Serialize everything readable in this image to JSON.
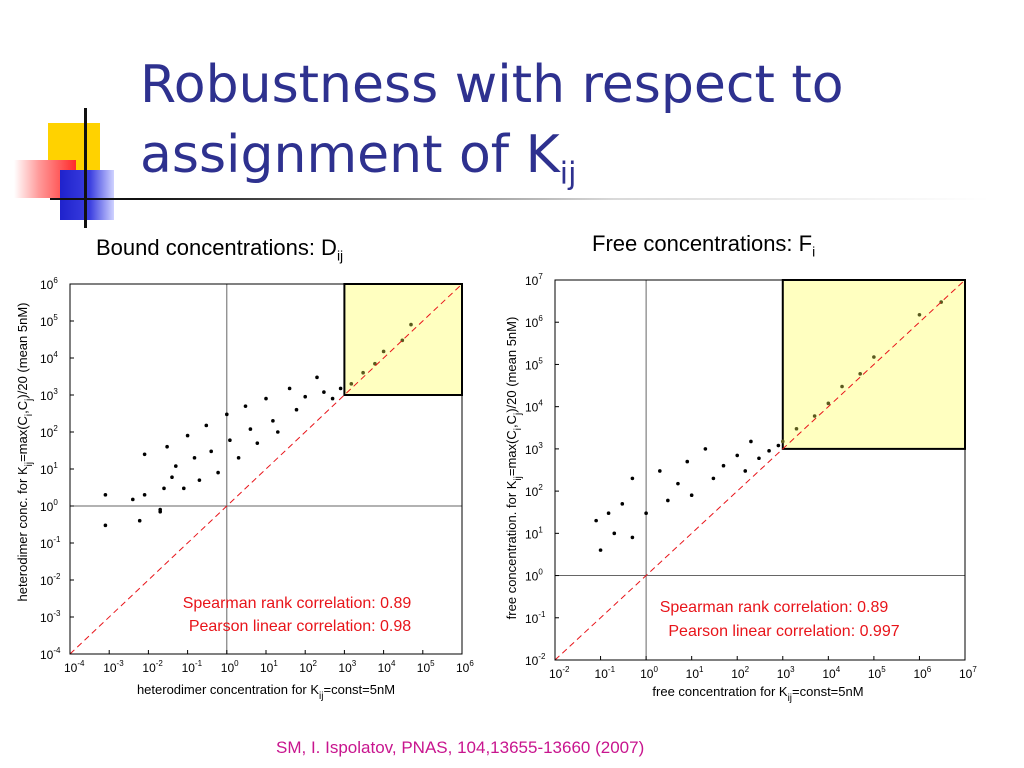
{
  "slide": {
    "title_main": "Robustness with respect to assignment of K",
    "title_sub": "ij",
    "citation": "SM, I. Ispolatov, PNAS, 104,13655-13660  (2007)",
    "colors": {
      "title": "#2e318f",
      "citation": "#c8158e",
      "annotation": "#e8141a",
      "highlight": "#ffffc0"
    }
  },
  "chart_data": [
    {
      "type": "scatter",
      "title": "Bound concentrations: D",
      "title_sub": "ij",
      "xlabel": "heterodimer concentration for K",
      "xlabel_sub": "ij",
      "xlabel_tail": "=const=5nM",
      "ylabel": "heterodimer conc. for K",
      "ylabel_sub": "ij",
      "ylabel_tail": "=max(C",
      "ylabel_sub2": "i",
      "ylabel_mid": ",C",
      "ylabel_sub3": "j",
      "ylabel_end": ")/20 (mean 5nM)",
      "xscale": "log",
      "yscale": "log",
      "xlim": [
        0.0001,
        1000000
      ],
      "ylim": [
        0.0001,
        1000000
      ],
      "xtick_exponents": [
        "-4",
        "-3",
        "-2",
        "-1",
        "0",
        "1",
        "2",
        "3",
        "4",
        "5",
        "6"
      ],
      "ytick_exponents": [
        "-4",
        "-3",
        "-2",
        "-1",
        "0",
        "1",
        "2",
        "3",
        "4",
        "5",
        "6"
      ],
      "reference_lines": {
        "vertical_x": 1,
        "horizontal_y": 1,
        "diagonal": "y = x"
      },
      "highlight_box": {
        "x": [
          1000,
          1000000
        ],
        "y": [
          1000,
          1000000
        ]
      },
      "points": [
        [
          0.0008,
          0.3
        ],
        [
          0.0008,
          2
        ],
        [
          0.004,
          1.5
        ],
        [
          0.006,
          0.4
        ],
        [
          0.008,
          25
        ],
        [
          0.008,
          2
        ],
        [
          0.02,
          0.7
        ],
        [
          0.02,
          0.8
        ],
        [
          0.025,
          3
        ],
        [
          0.03,
          40
        ],
        [
          0.04,
          6
        ],
        [
          0.05,
          12
        ],
        [
          0.08,
          3
        ],
        [
          0.1,
          80
        ],
        [
          0.15,
          20
        ],
        [
          0.2,
          5
        ],
        [
          0.3,
          150
        ],
        [
          0.4,
          30
        ],
        [
          0.6,
          8
        ],
        [
          1,
          300
        ],
        [
          1.2,
          60
        ],
        [
          2,
          20
        ],
        [
          3,
          500
        ],
        [
          4,
          120
        ],
        [
          6,
          50
        ],
        [
          10,
          800
        ],
        [
          15,
          200
        ],
        [
          20,
          100
        ],
        [
          40,
          1500
        ],
        [
          60,
          400
        ],
        [
          100,
          900
        ],
        [
          200,
          3000
        ],
        [
          300,
          1200
        ],
        [
          500,
          800
        ],
        [
          800,
          1500
        ],
        [
          1500,
          2000
        ],
        [
          3000,
          4000
        ],
        [
          6000,
          7000
        ],
        [
          10000,
          15000
        ],
        [
          30000,
          30000
        ],
        [
          50000,
          80000
        ]
      ],
      "annotations": [
        "Spearman rank correlation: 0.89",
        "Pearson linear correlation: 0.98"
      ]
    },
    {
      "type": "scatter",
      "title": "Free concentrations: F",
      "title_sub": "i",
      "xlabel": "free concentration for K",
      "xlabel_sub": "ij",
      "xlabel_tail": "=const=5nM",
      "ylabel": "free concentration. for K",
      "ylabel_sub": "ij",
      "ylabel_tail": "=max(C",
      "ylabel_sub2": "i",
      "ylabel_mid": ",C",
      "ylabel_sub3": "j",
      "ylabel_end": ")/20 (mean 5nM)",
      "xscale": "log",
      "yscale": "log",
      "xlim": [
        0.01,
        10000000
      ],
      "ylim": [
        0.01,
        10000000
      ],
      "xtick_exponents": [
        "-2",
        "-1",
        "0",
        "1",
        "2",
        "3",
        "4",
        "5",
        "6",
        "7"
      ],
      "ytick_exponents": [
        "-2",
        "-1",
        "0",
        "1",
        "2",
        "3",
        "4",
        "5",
        "6",
        "7"
      ],
      "reference_lines": {
        "vertical_x": 1,
        "horizontal_y": 1,
        "diagonal": "y = x"
      },
      "highlight_box": {
        "x": [
          1000,
          10000000
        ],
        "y": [
          1000,
          10000000
        ]
      },
      "points": [
        [
          0.08,
          20
        ],
        [
          0.1,
          4
        ],
        [
          0.15,
          30
        ],
        [
          0.2,
          10
        ],
        [
          0.3,
          50
        ],
        [
          0.5,
          8
        ],
        [
          0.5,
          200
        ],
        [
          1,
          30
        ],
        [
          2,
          300
        ],
        [
          3,
          60
        ],
        [
          5,
          150
        ],
        [
          8,
          500
        ],
        [
          10,
          80
        ],
        [
          20,
          1000
        ],
        [
          30,
          200
        ],
        [
          50,
          400
        ],
        [
          100,
          700
        ],
        [
          150,
          300
        ],
        [
          200,
          1500
        ],
        [
          300,
          600
        ],
        [
          500,
          900
        ],
        [
          800,
          1200
        ],
        [
          1000,
          1500
        ],
        [
          2000,
          3000
        ],
        [
          5000,
          6000
        ],
        [
          10000,
          12000
        ],
        [
          20000,
          30000
        ],
        [
          50000,
          60000
        ],
        [
          100000,
          150000
        ],
        [
          1000000,
          1500000
        ],
        [
          3000000,
          3000000
        ]
      ],
      "annotations": [
        "Spearman rank correlation: 0.89",
        "Pearson linear correlation: 0.997"
      ]
    }
  ]
}
